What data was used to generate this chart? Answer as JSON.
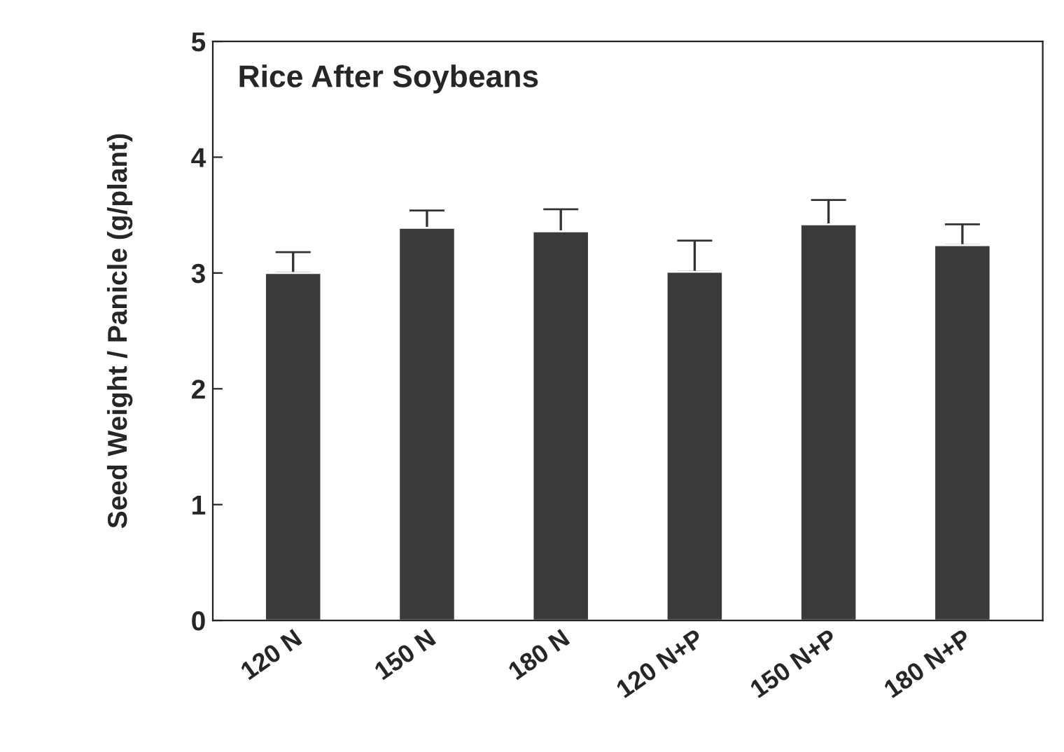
{
  "chart_data": {
    "type": "bar",
    "title": "Rice After Soybeans",
    "ylabel": "Seed Weight / Panicle (g/plant)",
    "categories": [
      "120 N",
      "150 N",
      "180 N",
      "120 N+P",
      "150 N+P",
      "180 N+P"
    ],
    "values": [
      3.0,
      3.39,
      3.36,
      3.01,
      3.42,
      3.24
    ],
    "errors": [
      [
        3.0,
        3.18
      ],
      [
        3.39,
        3.54
      ],
      [
        3.36,
        3.55
      ],
      [
        3.01,
        3.28
      ],
      [
        3.42,
        3.63
      ],
      [
        3.24,
        3.42
      ]
    ],
    "color": "#3a3a3a",
    "ylim": [
      0,
      5
    ],
    "yticks": [
      0,
      1,
      2,
      3,
      4,
      5
    ],
    "grid": false
  }
}
